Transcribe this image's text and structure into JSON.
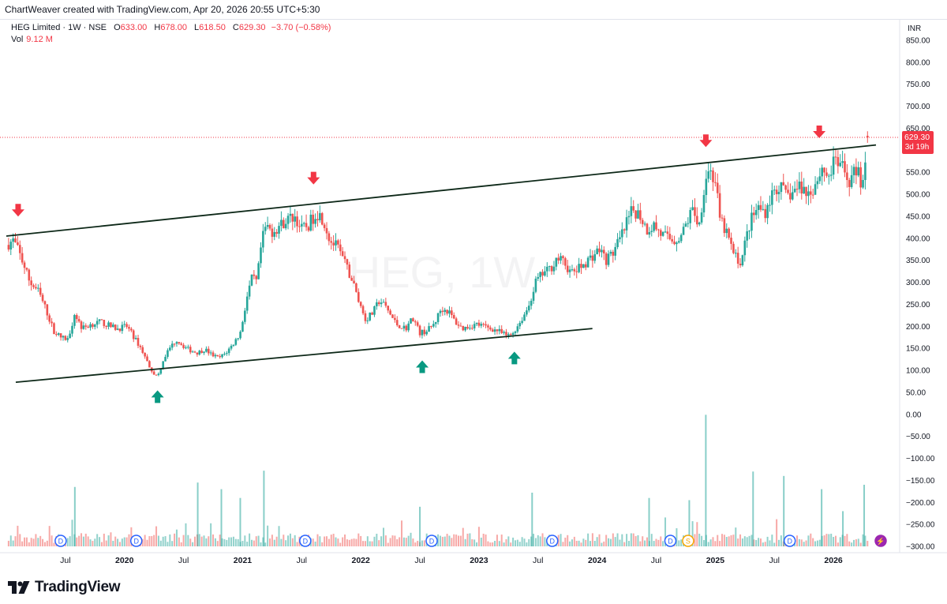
{
  "header": {
    "credit": "ChartWeaver created with TradingView.com, Apr 20, 2026 20:55 UTC+5:30"
  },
  "legend": {
    "symbol": "HEG Limited · 1W · NSE",
    "o_label": "O",
    "o": "633.00",
    "h_label": "H",
    "h": "678.00",
    "l_label": "L",
    "l": "618.50",
    "c_label": "C",
    "c": "629.30",
    "change": "−3.70 (−0.58%)",
    "vol_label": "Vol",
    "vol": "9.12 M"
  },
  "watermark": "HEG, 1W",
  "price_badge": {
    "price": "629.30",
    "countdown": "3d 19h"
  },
  "brand": {
    "name": "TradingView"
  },
  "colors": {
    "up": "#26a69a",
    "down": "#ef5350",
    "trendline": "#0d2818",
    "arrow_up": "#089981",
    "arrow_down": "#f23645"
  },
  "chart_data": {
    "type": "candlestick",
    "currency": "INR",
    "y_ticks": [
      "850.00",
      "800.00",
      "750.00",
      "700.00",
      "650.00",
      "600.00",
      "550.00",
      "500.00",
      "450.00",
      "400.00",
      "350.00",
      "300.00",
      "250.00",
      "200.00",
      "150.00",
      "100.00",
      "50.00",
      "0.00",
      "−50.00",
      "−100.00",
      "−150.00",
      "−200.00",
      "−250.00",
      "−300.00"
    ],
    "ylim": [
      -300,
      850
    ],
    "x_ticks": [
      {
        "label": "Jul",
        "t": 2019.5
      },
      {
        "label": "2020",
        "t": 2020.0
      },
      {
        "label": "Jul",
        "t": 2020.5
      },
      {
        "label": "2021",
        "t": 2021.0
      },
      {
        "label": "Jul",
        "t": 2021.5
      },
      {
        "label": "2022",
        "t": 2022.0
      },
      {
        "label": "Jul",
        "t": 2022.5
      },
      {
        "label": "2023",
        "t": 2023.0
      },
      {
        "label": "Jul",
        "t": 2023.5
      },
      {
        "label": "2024",
        "t": 2024.0
      },
      {
        "label": "Jul",
        "t": 2024.5
      },
      {
        "label": "2025",
        "t": 2025.0
      },
      {
        "label": "Jul",
        "t": 2025.5
      },
      {
        "label": "2026",
        "t": 2026.0
      }
    ],
    "price_path": [
      [
        2019.0,
        385
      ],
      [
        2019.06,
        395
      ],
      [
        2019.12,
        360
      ],
      [
        2019.2,
        300
      ],
      [
        2019.27,
        280
      ],
      [
        2019.34,
        235
      ],
      [
        2019.4,
        190
      ],
      [
        2019.46,
        175
      ],
      [
        2019.52,
        170
      ],
      [
        2019.58,
        230
      ],
      [
        2019.64,
        195
      ],
      [
        2019.72,
        205
      ],
      [
        2019.8,
        210
      ],
      [
        2019.88,
        200
      ],
      [
        2019.94,
        195
      ],
      [
        2020.02,
        200
      ],
      [
        2020.08,
        175
      ],
      [
        2020.14,
        150
      ],
      [
        2020.2,
        115
      ],
      [
        2020.24,
        95
      ],
      [
        2020.28,
        85
      ],
      [
        2020.33,
        125
      ],
      [
        2020.38,
        150
      ],
      [
        2020.44,
        170
      ],
      [
        2020.5,
        155
      ],
      [
        2020.56,
        145
      ],
      [
        2020.62,
        140
      ],
      [
        2020.68,
        148
      ],
      [
        2020.74,
        135
      ],
      [
        2020.8,
        128
      ],
      [
        2020.86,
        140
      ],
      [
        2020.92,
        160
      ],
      [
        2020.98,
        185
      ],
      [
        2021.04,
        270
      ],
      [
        2021.08,
        310
      ],
      [
        2021.12,
        300
      ],
      [
        2021.16,
        390
      ],
      [
        2021.2,
        430
      ],
      [
        2021.24,
        415
      ],
      [
        2021.3,
        425
      ],
      [
        2021.36,
        440
      ],
      [
        2021.44,
        450
      ],
      [
        2021.5,
        420
      ],
      [
        2021.56,
        430
      ],
      [
        2021.62,
        460
      ],
      [
        2021.68,
        445
      ],
      [
        2021.74,
        395
      ],
      [
        2021.8,
        380
      ],
      [
        2021.86,
        345
      ],
      [
        2021.92,
        310
      ],
      [
        2021.98,
        260
      ],
      [
        2022.04,
        215
      ],
      [
        2022.1,
        230
      ],
      [
        2022.16,
        260
      ],
      [
        2022.22,
        240
      ],
      [
        2022.3,
        205
      ],
      [
        2022.38,
        195
      ],
      [
        2022.44,
        220
      ],
      [
        2022.5,
        185
      ],
      [
        2022.56,
        190
      ],
      [
        2022.62,
        205
      ],
      [
        2022.68,
        240
      ],
      [
        2022.74,
        235
      ],
      [
        2022.8,
        210
      ],
      [
        2022.86,
        195
      ],
      [
        2022.92,
        200
      ],
      [
        2022.98,
        205
      ],
      [
        2023.04,
        200
      ],
      [
        2023.1,
        195
      ],
      [
        2023.16,
        190
      ],
      [
        2023.22,
        180
      ],
      [
        2023.26,
        178
      ],
      [
        2023.3,
        190
      ],
      [
        2023.36,
        215
      ],
      [
        2023.42,
        245
      ],
      [
        2023.48,
        300
      ],
      [
        2023.54,
        320
      ],
      [
        2023.6,
        330
      ],
      [
        2023.66,
        355
      ],
      [
        2023.72,
        345
      ],
      [
        2023.78,
        320
      ],
      [
        2023.84,
        330
      ],
      [
        2023.9,
        345
      ],
      [
        2023.96,
        360
      ],
      [
        2024.02,
        375
      ],
      [
        2024.08,
        350
      ],
      [
        2024.14,
        370
      ],
      [
        2024.2,
        400
      ],
      [
        2024.26,
        440
      ],
      [
        2024.3,
        465
      ],
      [
        2024.36,
        455
      ],
      [
        2024.42,
        420
      ],
      [
        2024.48,
        430
      ],
      [
        2024.54,
        410
      ],
      [
        2024.6,
        400
      ],
      [
        2024.66,
        395
      ],
      [
        2024.72,
        410
      ],
      [
        2024.78,
        450
      ],
      [
        2024.82,
        470
      ],
      [
        2024.86,
        420
      ],
      [
        2024.9,
        510
      ],
      [
        2024.94,
        560
      ],
      [
        2025.0,
        530
      ],
      [
        2025.04,
        440
      ],
      [
        2025.1,
        410
      ],
      [
        2025.16,
        360
      ],
      [
        2025.22,
        345
      ],
      [
        2025.26,
        400
      ],
      [
        2025.3,
        440
      ],
      [
        2025.36,
        470
      ],
      [
        2025.42,
        460
      ],
      [
        2025.48,
        500
      ],
      [
        2025.54,
        520
      ],
      [
        2025.6,
        495
      ],
      [
        2025.66,
        505
      ],
      [
        2025.72,
        520
      ],
      [
        2025.78,
        500
      ],
      [
        2025.84,
        520
      ],
      [
        2025.9,
        560
      ],
      [
        2025.96,
        540
      ],
      [
        2026.02,
        580
      ],
      [
        2026.08,
        555
      ],
      [
        2026.14,
        530
      ],
      [
        2026.2,
        560
      ],
      [
        2026.24,
        520
      ],
      [
        2026.28,
        590
      ],
      [
        2026.3,
        629.3
      ]
    ],
    "last": {
      "open": 633.0,
      "high": 678.0,
      "low": 618.5,
      "close": 629.3,
      "change": -3.7,
      "change_pct": -0.58
    },
    "volume_last": "9.12 M",
    "volume_spikes": [
      [
        2019.58,
        -165
      ],
      [
        2020.62,
        -155
      ],
      [
        2020.82,
        -170
      ],
      [
        2020.98,
        -190
      ],
      [
        2021.18,
        -128
      ],
      [
        2022.5,
        -210
      ],
      [
        2023.45,
        -178
      ],
      [
        2024.44,
        -190
      ],
      [
        2024.92,
        -1
      ],
      [
        2024.78,
        -195
      ],
      [
        2025.32,
        -130
      ],
      [
        2025.58,
        -140
      ],
      [
        2025.9,
        -170
      ],
      [
        2026.08,
        -220
      ],
      [
        2026.26,
        -160
      ]
    ],
    "trendlines": [
      {
        "name": "upper",
        "from": [
          2019.0,
          405
        ],
        "to": [
          2026.36,
          612
        ]
      },
      {
        "name": "lower",
        "from": [
          2019.08,
          73
        ],
        "to": [
          2023.96,
          195
        ]
      }
    ],
    "arrows": [
      {
        "dir": "down",
        "t": 2019.1,
        "price": 462
      },
      {
        "dir": "down",
        "t": 2021.6,
        "price": 535
      },
      {
        "dir": "down",
        "t": 2024.92,
        "price": 620
      },
      {
        "dir": "down",
        "t": 2025.88,
        "price": 640
      },
      {
        "dir": "up",
        "t": 2020.28,
        "price": 42
      },
      {
        "dir": "up",
        "t": 2022.52,
        "price": 110
      },
      {
        "dir": "up",
        "t": 2023.3,
        "price": 130
      }
    ],
    "events": [
      {
        "label": "D",
        "t": 2019.46,
        "kind": "dividend"
      },
      {
        "label": "D",
        "t": 2020.1,
        "kind": "dividend"
      },
      {
        "label": "D",
        "t": 2021.53,
        "kind": "dividend"
      },
      {
        "label": "D",
        "t": 2022.6,
        "kind": "dividend"
      },
      {
        "label": "D",
        "t": 2023.62,
        "kind": "dividend"
      },
      {
        "label": "D",
        "t": 2024.62,
        "kind": "dividend"
      },
      {
        "label": "S",
        "t": 2024.77,
        "kind": "split"
      },
      {
        "label": "D",
        "t": 2025.63,
        "kind": "dividend"
      },
      {
        "label": "⚡",
        "t": 2026.4,
        "kind": "earnings"
      }
    ]
  }
}
